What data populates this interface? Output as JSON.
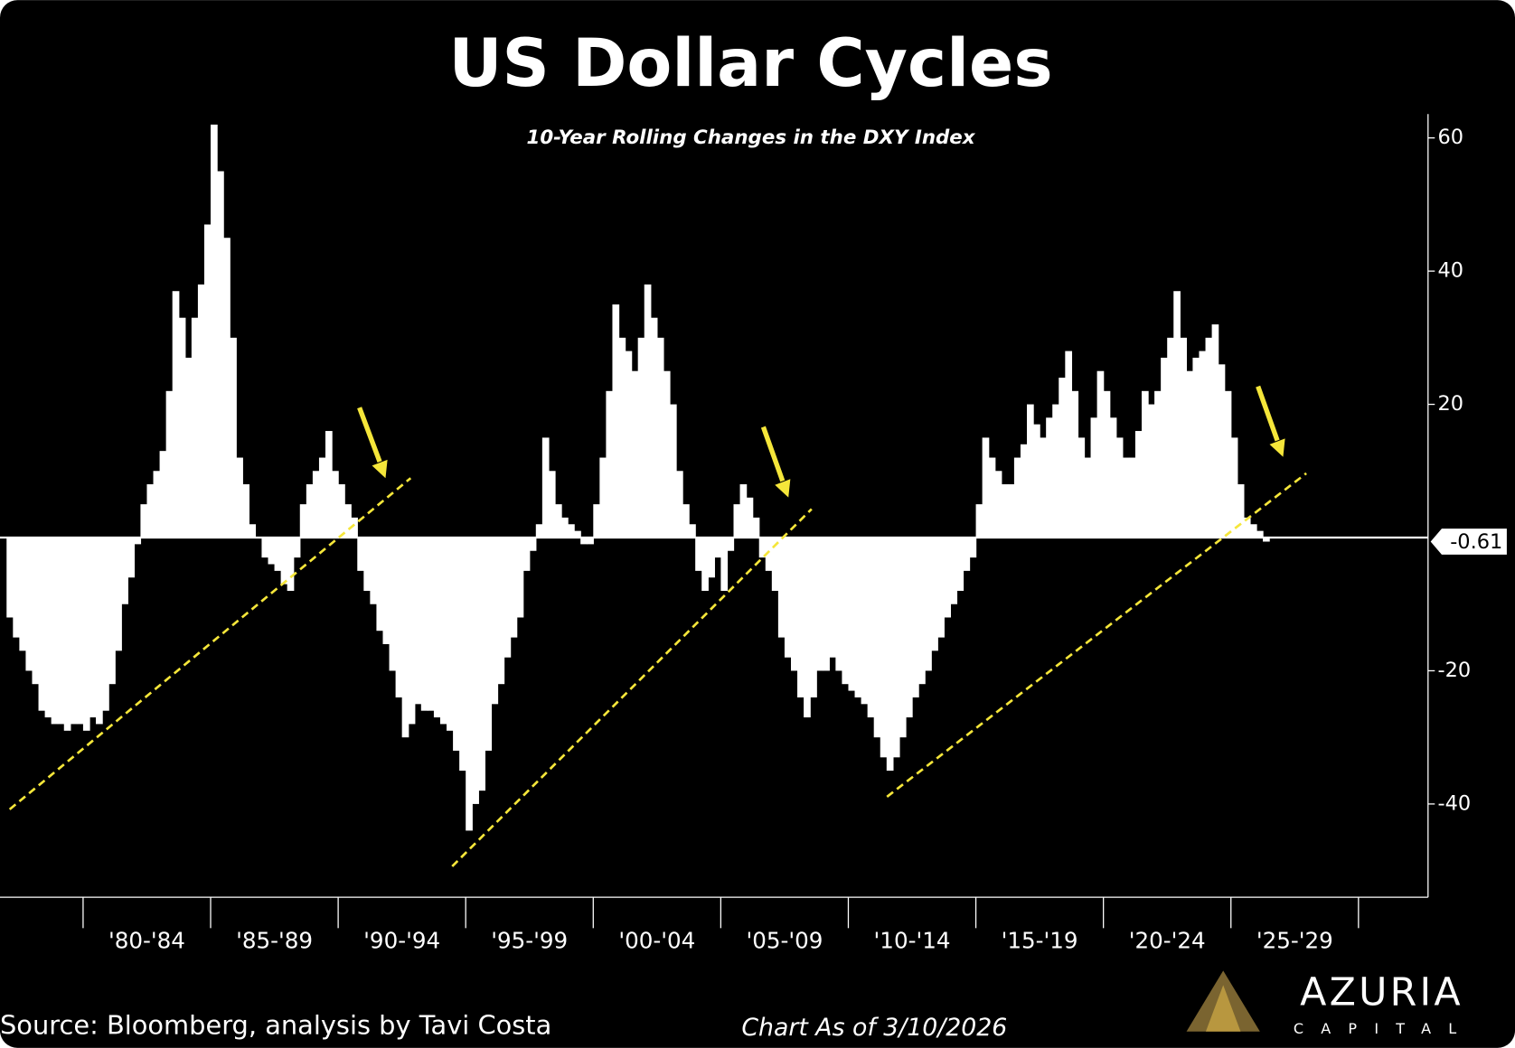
{
  "chart_data": {
    "type": "bar",
    "title": "US Dollar Cycles",
    "subtitle": "10-Year Rolling Changes in the DXY Index",
    "categories": [
      null,
      "'80-'84",
      "'85-'89",
      "'90-'94",
      "'95-'99",
      "'00-'04",
      "'05-'09",
      "'10-'14",
      "'15-'19",
      "'20-'24",
      "'25-'29"
    ],
    "values": [
      [
        null,
        null,
        null,
        null,
        null,
        null,
        null,
        null,
        -12,
        -15,
        -17,
        -20,
        -22,
        -26,
        -27,
        -28,
        -28,
        -29,
        -28,
        -28
      ],
      [
        -29,
        -27,
        -28,
        -26,
        -22,
        -17,
        -10,
        -6,
        -1,
        5,
        8,
        10,
        13,
        22,
        37,
        33,
        27,
        33,
        38,
        47
      ],
      [
        62,
        55,
        45,
        30,
        12,
        8,
        2,
        0,
        -3,
        -4,
        -5,
        -7,
        -8,
        -3,
        5,
        8,
        10,
        12,
        16,
        10
      ],
      [
        8,
        5,
        3,
        -5,
        -8,
        -10,
        -14,
        -16,
        -20,
        -24,
        -30,
        -28,
        -25,
        -26,
        -26,
        -27,
        -28,
        -29,
        -32,
        -35
      ],
      [
        -44,
        -40,
        -38,
        -32,
        -25,
        -22,
        -18,
        -15,
        -12,
        -5,
        -2,
        2,
        15,
        10,
        5,
        3,
        2,
        1,
        -1,
        -1
      ],
      [
        5,
        12,
        22,
        35,
        30,
        28,
        25,
        30,
        38,
        33,
        30,
        25,
        20,
        10,
        5,
        2,
        -5,
        -8,
        -6,
        -3
      ],
      [
        -8,
        -2,
        5,
        8,
        6,
        3,
        -3,
        -5,
        -8,
        -15,
        -18,
        -20,
        -24,
        -27,
        -24,
        -20,
        -20,
        -18,
        -20,
        -22
      ],
      [
        -23,
        -24,
        -25,
        -27,
        -30,
        -33,
        -35,
        -33,
        -30,
        -27,
        -24,
        -22,
        -20,
        -17,
        -15,
        -12,
        -10,
        -8,
        -5,
        -3
      ],
      [
        5,
        15,
        12,
        10,
        8,
        8,
        12,
        14,
        20,
        17,
        15,
        18,
        20,
        24,
        28,
        22,
        15,
        12,
        18,
        25
      ],
      [
        22,
        18,
        15,
        12,
        12,
        16,
        22,
        20,
        22,
        27,
        30,
        37,
        30,
        25,
        27,
        28,
        30,
        32,
        26,
        22
      ],
      [
        15,
        8,
        3,
        2,
        1,
        -0.61,
        null,
        null,
        null,
        null,
        null,
        null,
        null,
        null,
        null,
        null,
        null,
        null,
        null,
        null
      ]
    ],
    "color": "#ffffff",
    "ylim": [
      -54,
      63
    ],
    "yticks": [
      -40,
      -20,
      20,
      40,
      60
    ],
    "source": "Source: Bloomberg, analysis by Tavi Costa",
    "as_of": "Chart As of 3/10/2026",
    "logo": {
      "name": "AZURIA",
      "sub": "CAPITAL"
    }
  }
}
